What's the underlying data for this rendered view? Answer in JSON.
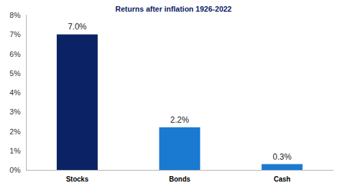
{
  "chart_data": {
    "type": "bar",
    "title": "Returns after inflation 1926-2022",
    "categories": [
      "Stocks",
      "Bonds",
      "Cash"
    ],
    "values": [
      7.0,
      2.2,
      0.3
    ],
    "value_labels": [
      "7.0%",
      "2.2%",
      "0.3%"
    ],
    "colors": [
      "#0b2265",
      "#1a7ad2",
      "#1a7ad2"
    ],
    "ylim": [
      0,
      8
    ],
    "yticks": [
      {
        "value": 0,
        "label": "0%"
      },
      {
        "value": 1,
        "label": "1%"
      },
      {
        "value": 2,
        "label": "2%"
      },
      {
        "value": 3,
        "label": "3%"
      },
      {
        "value": 4,
        "label": "4%"
      },
      {
        "value": 5,
        "label": "5%"
      },
      {
        "value": 6,
        "label": "6%"
      },
      {
        "value": 7,
        "label": "7%"
      },
      {
        "value": 8,
        "label": "8%"
      }
    ],
    "grid": false,
    "data_labels": true
  }
}
